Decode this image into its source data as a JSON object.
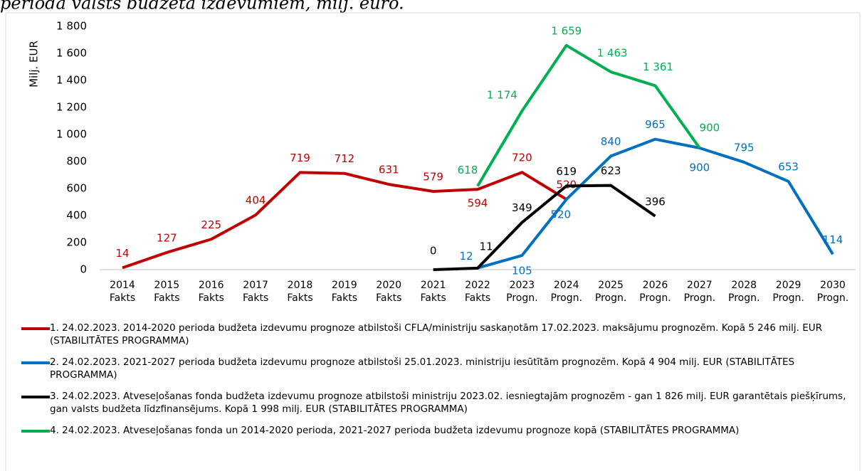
{
  "chart_data": {
    "type": "line",
    "title": "perioda valsts budžeta izdevumiem, milj. euro.",
    "y_label": "Milj. EUR",
    "categories": [
      "2014 Fakts",
      "2015 Fakts",
      "2016 Fakts",
      "2017 Fakts",
      "2018 Fakts",
      "2019 Fakts",
      "2020 Fakts",
      "2021 Fakts",
      "2022 Fakts",
      "2023 Progn.",
      "2024 Progn.",
      "2025 Progn.",
      "2026 Progn.",
      "2027 Progn.",
      "2028 Progn.",
      "2029 Progn.",
      "2030 Progn."
    ],
    "ylim": [
      0,
      1800
    ],
    "yticks": [
      0,
      200,
      400,
      600,
      800,
      {
        "value": 1000,
        "label": "1 000"
      },
      {
        "value": 1200,
        "label": "1 200"
      },
      {
        "value": 1400,
        "label": "1 400"
      },
      {
        "value": 1600,
        "label": "1 600"
      },
      {
        "value": 1800,
        "label": "1 800"
      }
    ],
    "grid": false,
    "legend": "bottom",
    "series": [
      {
        "name": "1. 24.02.2023. 2014-2020 perioda budžeta izdevumu prognoze atbilstoši CFLA/ministriju saskaņotām 17.02.2023. maksājumu prognozēm. Kopā 5 246 milj. EUR (STABILITĀTES PROGRAMMA)",
        "color": "#c00000",
        "values": [
          14,
          127,
          225,
          404,
          719,
          712,
          631,
          579,
          594,
          720,
          520,
          null,
          null,
          null,
          null,
          null,
          null
        ]
      },
      {
        "name": "2. 24.02.2023. 2021-2027 perioda budžeta izdevumu prognoze atbilstoši 25.01.2023. ministriju iesūtītām prognozēm. Kopā 4 904 milj. EUR (STABILITĀTES PROGRAMMA)",
        "color": "#0070c0",
        "values": [
          null,
          null,
          null,
          null,
          null,
          null,
          null,
          null,
          12,
          105,
          520,
          840,
          965,
          900,
          795,
          653,
          114
        ]
      },
      {
        "name": "3.  24.02.2023. Atveseļošanas fonda budžeta izdevumu prognoze atbilstoši ministriju 2023.02. iesniegtajām prognozēm  - gan 1 826 milj. EUR garantētais piešķīrums, gan valsts budžeta līdzfinansējums. Kopā 1 998 milj. EUR (STABILITĀTES PROGRAMMA)",
        "color": "#000000",
        "values": [
          null,
          null,
          null,
          null,
          null,
          null,
          null,
          0,
          11,
          349,
          619,
          623,
          396,
          null,
          null,
          null,
          null
        ]
      },
      {
        "name": "4.  24.02.2023. Atveseļošanas fonda un 2014-2020 perioda, 2021-2027 perioda budžeta izdevumu prognoze kopā (STABILITĀTES PROGRAMMA)",
        "color": "#00b050",
        "values": [
          null,
          null,
          null,
          null,
          null,
          null,
          null,
          null,
          618,
          1174,
          1659,
          1463,
          1361,
          900,
          null,
          null,
          null
        ],
        "value_labels": [
          null,
          null,
          null,
          null,
          null,
          null,
          null,
          null,
          "618",
          "1 174",
          "1 659",
          "1 463",
          "1 361",
          "900",
          null,
          null,
          null
        ]
      }
    ]
  }
}
